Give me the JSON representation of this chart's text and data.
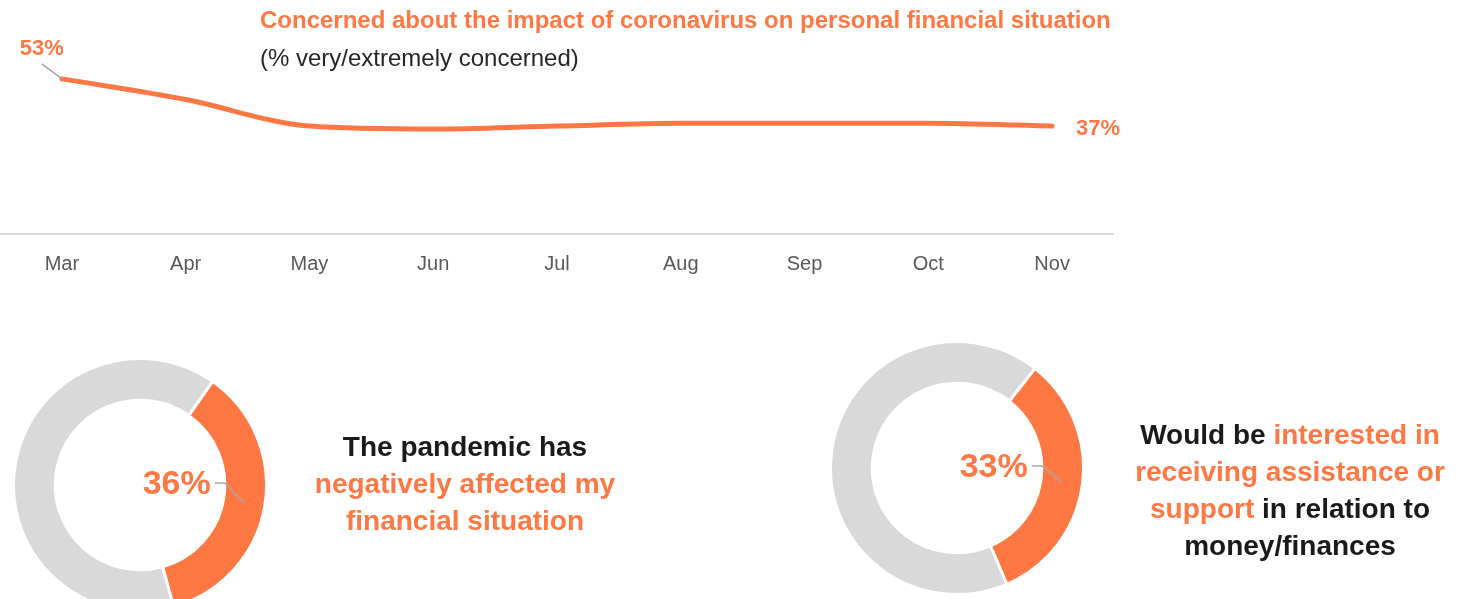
{
  "chart_data": [
    {
      "type": "line",
      "title": "Concerned about the impact of coronavirus on personal financial situation",
      "subtitle": "(% very/extremely concerned)",
      "categories": [
        "Mar",
        "Apr",
        "May",
        "Jun",
        "Jul",
        "Aug",
        "Sep",
        "Oct",
        "Nov"
      ],
      "series": [
        {
          "color": "#ff7843",
          "values": [
            53,
            46,
            37,
            36,
            37,
            38,
            38,
            38,
            37
          ],
          "value_labels": [
            "53%",
            null,
            null,
            null,
            null,
            null,
            null,
            null,
            "37%"
          ]
        }
      ],
      "grid": false,
      "marker": "none",
      "line_style": "solid",
      "tick_labels": "x"
    },
    {
      "type": "donut",
      "categories": [
        null,
        null
      ],
      "values": [
        36,
        64
      ],
      "colors": [
        "#ff7843",
        "#d9d9d9"
      ],
      "value_labels": [
        "36%",
        null
      ],
      "annotations": [
        "The pandemic has",
        "negatively affected my financial situation"
      ]
    },
    {
      "type": "donut",
      "categories": [
        null,
        null
      ],
      "values": [
        33,
        67
      ],
      "colors": [
        "#ff7843",
        "#d9d9d9"
      ],
      "value_labels": [
        "33%",
        null
      ],
      "annotations": [
        "Would be",
        "interested in receiving assistance or support",
        "in relation to money/finances"
      ]
    }
  ]
}
